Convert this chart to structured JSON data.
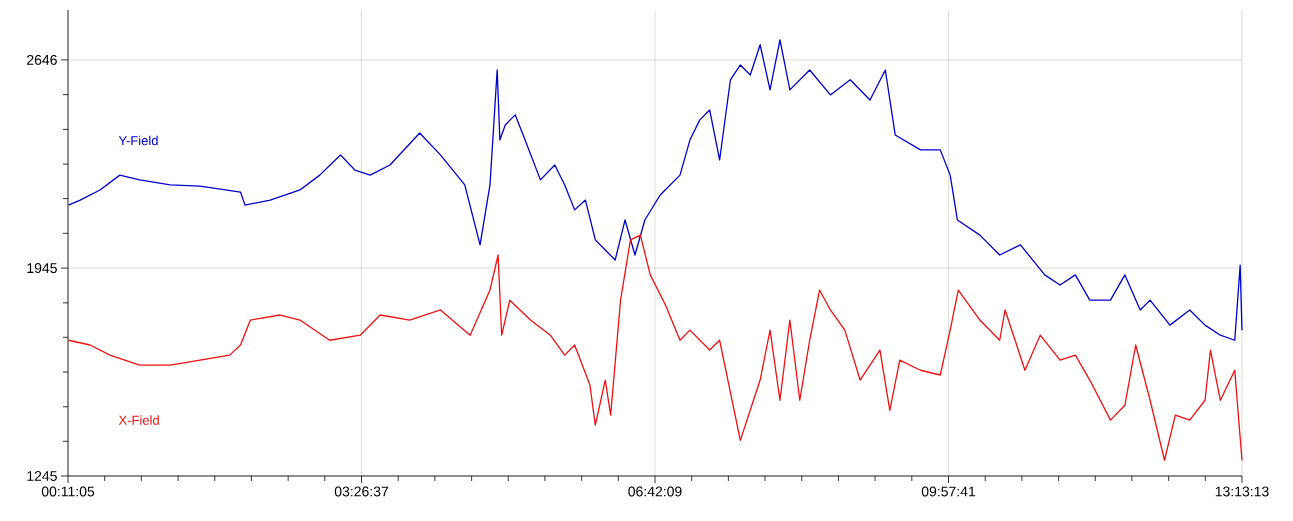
{
  "chart_data": {
    "type": "line",
    "x": [
      0.19,
      0.32,
      0.54,
      0.76,
      0.98,
      1.32,
      1.65,
      2.1,
      2.15,
      2.43,
      2.76,
      2.98,
      3.21,
      3.37,
      3.54,
      3.76,
      4.09,
      4.32,
      4.59,
      4.76,
      4.87,
      4.95,
      4.98,
      5.04,
      5.15,
      5.26,
      5.43,
      5.59,
      5.7,
      5.81,
      5.93,
      6.04,
      6.15,
      6.26,
      6.37,
      6.48,
      6.59,
      6.76,
      6.98,
      7.09,
      7.2,
      7.31,
      7.42,
      7.54,
      7.65,
      7.76,
      7.87,
      7.98,
      8.09,
      8.2,
      8.42,
      8.65,
      8.87,
      9.09,
      9.26,
      9.37,
      9.65,
      9.87,
      9.98,
      10.06,
      10.31,
      10.53,
      10.76,
      11.03,
      11.2,
      11.37,
      11.53,
      11.76,
      11.92,
      12.09,
      12.2,
      12.42,
      12.64,
      12.81,
      12.98,
      13.14,
      13.2,
      13.22
    ],
    "series": [
      {
        "name": "Y-Field",
        "color": "#0000cc",
        "values": [
          2157,
          2174,
          2208,
          2258,
          2242,
          2225,
          2221,
          2201,
          2157,
          2174,
          2208,
          2258,
          2326,
          2275,
          2258,
          2292,
          2400,
          2326,
          2225,
          2023,
          2225,
          2612,
          2376,
          2427,
          2461,
          2376,
          2242,
          2292,
          2225,
          2141,
          2174,
          2040,
          2006,
          1972,
          2107,
          1989,
          2107,
          2191,
          2258,
          2376,
          2444,
          2477,
          2309,
          2579,
          2629,
          2595,
          2697,
          2545,
          2713,
          2545,
          2612,
          2528,
          2579,
          2511,
          2612,
          2393,
          2343,
          2343,
          2258,
          2107,
          2056,
          1989,
          2023,
          1922,
          1888,
          1922,
          1837,
          1837,
          1922,
          1804,
          1837,
          1753,
          1804,
          1753,
          1719,
          1702,
          1955,
          1736
        ]
      },
      {
        "name": "X-Field",
        "color": "#ee1111",
        "x": [
          0.19,
          0.43,
          0.65,
          0.98,
          1.32,
          1.65,
          1.98,
          2.1,
          2.21,
          2.54,
          2.76,
          3.09,
          3.43,
          3.65,
          3.98,
          4.32,
          4.65,
          4.87,
          4.96,
          5.0,
          5.09,
          5.32,
          5.54,
          5.7,
          5.81,
          5.98,
          6.04,
          6.15,
          6.21,
          6.32,
          6.43,
          6.54,
          6.65,
          6.82,
          6.98,
          7.09,
          7.31,
          7.42,
          7.65,
          7.87,
          7.98,
          8.09,
          8.2,
          8.31,
          8.42,
          8.53,
          8.65,
          8.81,
          8.98,
          9.2,
          9.31,
          9.42,
          9.65,
          9.87,
          9.98,
          10.07,
          10.31,
          10.53,
          10.59,
          10.81,
          10.98,
          11.2,
          11.37,
          11.53,
          11.76,
          11.92,
          12.04,
          12.2,
          12.36,
          12.48,
          12.64,
          12.81,
          12.87,
          12.98,
          13.14,
          13.22
        ],
        "values": [
          1702,
          1686,
          1652,
          1618,
          1618,
          1635,
          1652,
          1686,
          1770,
          1787,
          1770,
          1702,
          1719,
          1787,
          1770,
          1804,
          1719,
          1871,
          1989,
          1719,
          1837,
          1770,
          1719,
          1652,
          1686,
          1551,
          1416,
          1568,
          1450,
          1837,
          2040,
          2056,
          1922,
          1820,
          1702,
          1736,
          1669,
          1702,
          1365,
          1568,
          1736,
          1500,
          1770,
          1500,
          1702,
          1871,
          1804,
          1736,
          1568,
          1669,
          1466,
          1635,
          1601,
          1585,
          1736,
          1871,
          1770,
          1702,
          1804,
          1601,
          1719,
          1635,
          1652,
          1568,
          1433,
          1483,
          1686,
          1500,
          1298,
          1450,
          1433,
          1500,
          1669,
          1500,
          1601,
          1298
        ]
      }
    ],
    "xlim": [
      0.1847,
      13.2203
    ],
    "ylim": [
      1245,
      2814
    ],
    "xticks": [
      {
        "value": 0.1847,
        "label": "00:11:05"
      },
      {
        "value": 0.592,
        "label": null
      },
      {
        "value": 0.999,
        "label": null
      },
      {
        "value": 1.407,
        "label": null
      },
      {
        "value": 1.814,
        "label": null
      },
      {
        "value": 2.221,
        "label": null
      },
      {
        "value": 2.629,
        "label": null
      },
      {
        "value": 3.036,
        "label": null
      },
      {
        "value": 3.4436,
        "label": "03:26:37"
      },
      {
        "value": 3.851,
        "label": null
      },
      {
        "value": 4.258,
        "label": null
      },
      {
        "value": 4.666,
        "label": null
      },
      {
        "value": 5.073,
        "label": null
      },
      {
        "value": 5.48,
        "label": null
      },
      {
        "value": 5.888,
        "label": null
      },
      {
        "value": 6.295,
        "label": null
      },
      {
        "value": 6.7025,
        "label": "06:42:09"
      },
      {
        "value": 7.11,
        "label": null
      },
      {
        "value": 7.517,
        "label": null
      },
      {
        "value": 7.924,
        "label": null
      },
      {
        "value": 8.332,
        "label": null
      },
      {
        "value": 8.739,
        "label": null
      },
      {
        "value": 9.146,
        "label": null
      },
      {
        "value": 9.554,
        "label": null
      },
      {
        "value": 9.9614,
        "label": "09:57:41"
      },
      {
        "value": 10.369,
        "label": null
      },
      {
        "value": 10.776,
        "label": null
      },
      {
        "value": 11.184,
        "label": null
      },
      {
        "value": 11.591,
        "label": null
      },
      {
        "value": 11.998,
        "label": null
      },
      {
        "value": 12.406,
        "label": null
      },
      {
        "value": 12.813,
        "label": null
      },
      {
        "value": 13.2203,
        "label": "13:13:13"
      }
    ],
    "yticks": [
      1245,
      {
        "value": 1362,
        "label": null
      },
      {
        "value": 1478,
        "label": null
      },
      {
        "value": 1595,
        "label": null
      },
      {
        "value": 1712,
        "label": null
      },
      {
        "value": 1828,
        "label": null
      },
      1945,
      {
        "value": 2062,
        "label": null
      },
      {
        "value": 2179,
        "label": null
      },
      {
        "value": 2295,
        "label": null
      },
      {
        "value": 2412,
        "label": null
      },
      {
        "value": 2529,
        "label": null
      },
      2646
    ],
    "grid": true,
    "legend": false,
    "marker": "none",
    "line_style": "solid"
  }
}
